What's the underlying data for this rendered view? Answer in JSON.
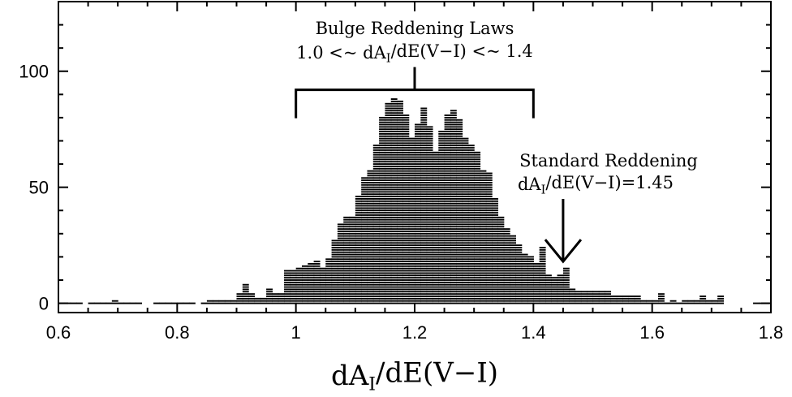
{
  "chart_data": {
    "type": "bar",
    "orientation": "histogram-hatched",
    "xlabel": "dA_I/dE(V−I)",
    "xlabel_parts": {
      "main": "dA",
      "sub": "I",
      "rest": "/dE(V−I)"
    },
    "ylabel": "",
    "xlim": [
      0.6,
      1.8
    ],
    "ylim": [
      -4,
      130
    ],
    "x_ticks": [
      "0.6",
      "0.8",
      "1",
      "1.2",
      "1.4",
      "1.6",
      "1.8"
    ],
    "x_tick_values": [
      0.6,
      0.8,
      1.0,
      1.2,
      1.4,
      1.6,
      1.8
    ],
    "y_ticks": [
      "0",
      "50",
      "100"
    ],
    "y_tick_values": [
      0,
      50,
      100
    ],
    "grid": false,
    "bin_width": 0.01,
    "bins": [
      [
        0.6,
        1
      ],
      [
        0.61,
        1
      ],
      [
        0.62,
        1
      ],
      [
        0.63,
        1
      ],
      [
        0.65,
        1
      ],
      [
        0.66,
        1
      ],
      [
        0.67,
        1
      ],
      [
        0.68,
        1
      ],
      [
        0.69,
        2
      ],
      [
        0.7,
        1
      ],
      [
        0.71,
        1
      ],
      [
        0.72,
        1
      ],
      [
        0.73,
        1
      ],
      [
        0.76,
        1
      ],
      [
        0.77,
        1
      ],
      [
        0.78,
        1
      ],
      [
        0.79,
        1
      ],
      [
        0.8,
        1
      ],
      [
        0.81,
        1
      ],
      [
        0.82,
        1
      ],
      [
        0.84,
        1
      ],
      [
        0.85,
        2
      ],
      [
        0.86,
        2
      ],
      [
        0.87,
        2
      ],
      [
        0.88,
        2
      ],
      [
        0.89,
        2
      ],
      [
        0.9,
        5
      ],
      [
        0.91,
        9
      ],
      [
        0.92,
        5
      ],
      [
        0.93,
        3
      ],
      [
        0.94,
        3
      ],
      [
        0.95,
        7
      ],
      [
        0.96,
        5
      ],
      [
        0.97,
        5
      ],
      [
        0.98,
        15
      ],
      [
        0.99,
        15
      ],
      [
        1.0,
        16
      ],
      [
        1.01,
        17
      ],
      [
        1.02,
        18
      ],
      [
        1.03,
        19
      ],
      [
        1.04,
        16
      ],
      [
        1.05,
        20
      ],
      [
        1.06,
        28
      ],
      [
        1.07,
        35
      ],
      [
        1.08,
        38
      ],
      [
        1.09,
        38
      ],
      [
        1.1,
        47
      ],
      [
        1.11,
        55
      ],
      [
        1.12,
        58
      ],
      [
        1.13,
        69
      ],
      [
        1.14,
        81
      ],
      [
        1.15,
        87
      ],
      [
        1.16,
        89
      ],
      [
        1.17,
        88
      ],
      [
        1.18,
        82
      ],
      [
        1.19,
        72
      ],
      [
        1.2,
        78
      ],
      [
        1.21,
        85
      ],
      [
        1.22,
        77
      ],
      [
        1.23,
        66
      ],
      [
        1.24,
        75
      ],
      [
        1.25,
        82
      ],
      [
        1.26,
        84
      ],
      [
        1.27,
        80
      ],
      [
        1.28,
        72
      ],
      [
        1.29,
        69
      ],
      [
        1.3,
        66
      ],
      [
        1.31,
        58
      ],
      [
        1.32,
        57
      ],
      [
        1.33,
        46
      ],
      [
        1.34,
        38
      ],
      [
        1.35,
        33
      ],
      [
        1.36,
        30
      ],
      [
        1.37,
        26
      ],
      [
        1.38,
        22
      ],
      [
        1.39,
        21
      ],
      [
        1.4,
        18
      ],
      [
        1.41,
        25
      ],
      [
        1.42,
        13
      ],
      [
        1.43,
        12
      ],
      [
        1.44,
        13
      ],
      [
        1.45,
        16
      ],
      [
        1.46,
        7
      ],
      [
        1.47,
        6
      ],
      [
        1.48,
        6
      ],
      [
        1.49,
        6
      ],
      [
        1.5,
        6
      ],
      [
        1.51,
        6
      ],
      [
        1.52,
        6
      ],
      [
        1.53,
        4
      ],
      [
        1.54,
        4
      ],
      [
        1.55,
        4
      ],
      [
        1.56,
        4
      ],
      [
        1.57,
        4
      ],
      [
        1.58,
        2
      ],
      [
        1.59,
        2
      ],
      [
        1.6,
        2
      ],
      [
        1.61,
        5
      ],
      [
        1.62,
        1
      ],
      [
        1.63,
        2
      ],
      [
        1.64,
        1
      ],
      [
        1.65,
        2
      ],
      [
        1.66,
        2
      ],
      [
        1.67,
        2
      ],
      [
        1.68,
        4
      ],
      [
        1.69,
        2
      ],
      [
        1.7,
        2
      ],
      [
        1.71,
        4
      ],
      [
        1.77,
        1
      ],
      [
        1.78,
        1
      ],
      [
        1.79,
        1
      ]
    ],
    "annotations": [
      {
        "id": "bulge",
        "lines": [
          {
            "text": "Bulge Reddening Laws"
          },
          {
            "parts": [
              "1.0 <~ dA",
              "I",
              "/dE(V−I) <~ 1.4"
            ]
          }
        ],
        "bracket_x": [
          1.0,
          1.4
        ],
        "bracket_y": 92
      },
      {
        "id": "standard",
        "lines": [
          {
            "text": "Standard Reddening"
          },
          {
            "parts": [
              "dA",
              "I",
              "/dE(V−I)=1.45"
            ]
          }
        ],
        "arrow_x": 1.45,
        "arrow_tip_y": 18,
        "arrow_tail_y": 45
      }
    ]
  }
}
